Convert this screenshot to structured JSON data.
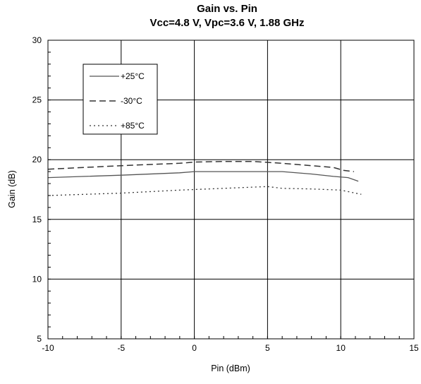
{
  "chart_data": {
    "type": "line",
    "title": "Gain vs. Pin",
    "subtitle": "Vcc=4.8 V, Vpc=3.6 V, 1.88 GHz",
    "xlabel": "Pin (dBm)",
    "ylabel": "Gain (dB)",
    "xlim": [
      -10,
      15
    ],
    "ylim": [
      5,
      30
    ],
    "x_ticks": [
      -10,
      -5,
      0,
      5,
      10,
      15
    ],
    "y_ticks": [
      5,
      10,
      15,
      20,
      25,
      30
    ],
    "x_tick_labels": [
      "-10",
      "-5",
      "0",
      "5",
      "10",
      "15"
    ],
    "y_tick_labels": [
      "5",
      "10",
      "15",
      "20",
      "25",
      "30"
    ],
    "grid": true,
    "legend_position": "top-left",
    "series": [
      {
        "name": "+25°C",
        "style": "solid",
        "color": "#555555",
        "points": [
          [
            -10,
            18.5
          ],
          [
            -5,
            18.7
          ],
          [
            -1,
            18.9
          ],
          [
            0,
            19.0
          ],
          [
            2,
            19.0
          ],
          [
            4,
            19.0
          ],
          [
            6,
            19.0
          ],
          [
            8,
            18.8
          ],
          [
            9.5,
            18.6
          ],
          [
            10.5,
            18.5
          ],
          [
            11.2,
            18.2
          ]
        ]
      },
      {
        "name": "-30°C",
        "style": "dashed",
        "color": "#333333",
        "points": [
          [
            -10,
            19.2
          ],
          [
            -5,
            19.5
          ],
          [
            -1,
            19.7
          ],
          [
            0,
            19.8
          ],
          [
            2,
            19.85
          ],
          [
            4,
            19.85
          ],
          [
            6,
            19.7
          ],
          [
            8,
            19.5
          ],
          [
            9.5,
            19.35
          ],
          [
            10.2,
            19.1
          ],
          [
            10.9,
            19.0
          ]
        ]
      },
      {
        "name": "+85°C",
        "style": "dotted",
        "color": "#333333",
        "points": [
          [
            -10,
            17.0
          ],
          [
            -5,
            17.2
          ],
          [
            -1,
            17.45
          ],
          [
            0,
            17.5
          ],
          [
            2,
            17.6
          ],
          [
            4,
            17.7
          ],
          [
            5,
            17.75
          ],
          [
            6,
            17.6
          ],
          [
            8,
            17.55
          ],
          [
            10,
            17.45
          ],
          [
            11.4,
            17.1
          ]
        ]
      }
    ]
  }
}
